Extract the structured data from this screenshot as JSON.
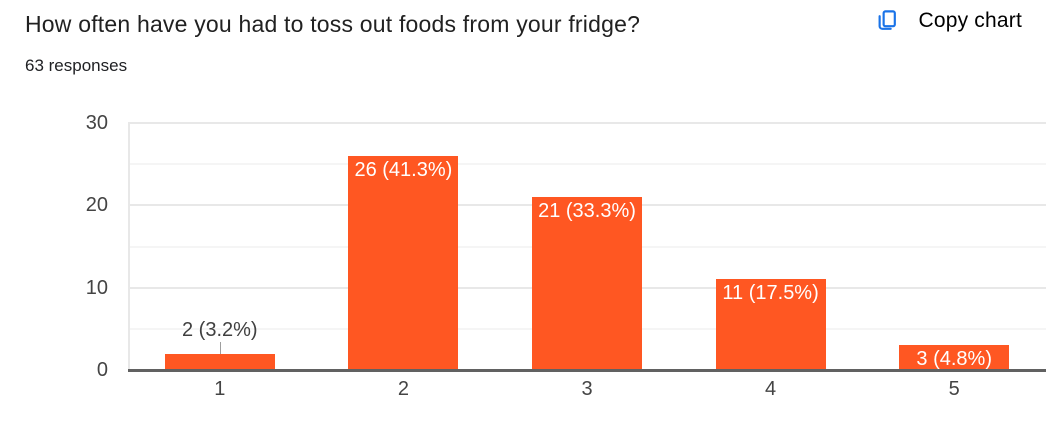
{
  "header": {
    "title": "How often have you had to toss out foods from your fridge?",
    "responses_count": "63 responses",
    "copy_chart_label": "Copy chart"
  },
  "colors": {
    "accent_blue": "#1a73e8",
    "bar_orange": "#ff5722",
    "title_text": "#212121",
    "axis_text": "#444444",
    "annotation_text": "#404040",
    "inside_label_text": "#ffffff",
    "gridline_major": "#e8e8e8",
    "gridline_minor": "#f5f5f5",
    "baseline": "#616161",
    "annotation_stem": "#9e9e9e"
  },
  "chart_data": {
    "type": "bar",
    "title": "How often have you had to toss out foods from your fridge?",
    "subtitle": "63 responses",
    "categories": [
      "1",
      "2",
      "3",
      "4",
      "5"
    ],
    "values": [
      2,
      26,
      21,
      11,
      3
    ],
    "value_labels": [
      "2 (3.2%)",
      "26 (41.3%)",
      "21 (33.3%)",
      "11 (17.5%)",
      "3 (4.8%)"
    ],
    "total_responses": 63,
    "xlabel": "",
    "ylabel": "",
    "ylim": [
      0,
      30
    ],
    "y_major_ticks": [
      0,
      10,
      20,
      30
    ],
    "y_minor_ticks": [
      5,
      15,
      25
    ],
    "grid": "on",
    "legend": "none",
    "bar_color": "#ff5722"
  }
}
